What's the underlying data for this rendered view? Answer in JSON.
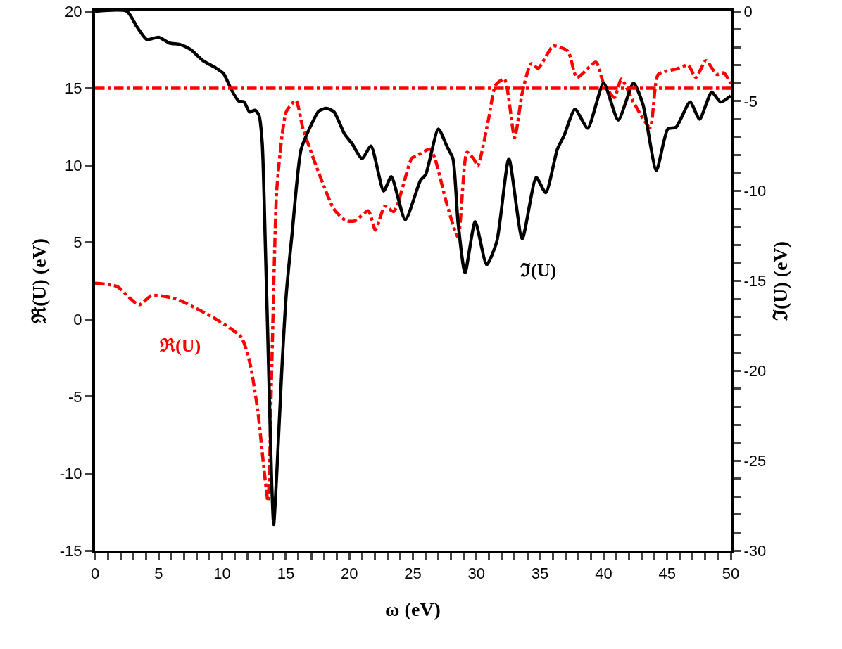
{
  "chart_data": {
    "type": "line",
    "xlabel": "ω (eV)",
    "ylabel": "ℜ(U) (eV)",
    "y2label": "ℑ(U) (eV)",
    "xlim": [
      0,
      50
    ],
    "xticks": [
      0,
      {
        "value": 1,
        "label": null
      },
      {
        "value": 2,
        "label": null
      },
      {
        "value": 3,
        "label": null
      },
      {
        "value": 4,
        "label": null
      },
      5,
      {
        "value": 6,
        "label": null
      },
      {
        "value": 7,
        "label": null
      },
      {
        "value": 8,
        "label": null
      },
      {
        "value": 9,
        "label": null
      },
      10,
      {
        "value": 11,
        "label": null
      },
      {
        "value": 12,
        "label": null
      },
      {
        "value": 13,
        "label": null
      },
      {
        "value": 14,
        "label": null
      },
      15,
      {
        "value": 16,
        "label": null
      },
      {
        "value": 17,
        "label": null
      },
      {
        "value": 18,
        "label": null
      },
      {
        "value": 19,
        "label": null
      },
      20,
      {
        "value": 21,
        "label": null
      },
      {
        "value": 22,
        "label": null
      },
      {
        "value": 23,
        "label": null
      },
      {
        "value": 24,
        "label": null
      },
      25,
      {
        "value": 26,
        "label": null
      },
      {
        "value": 27,
        "label": null
      },
      {
        "value": 28,
        "label": null
      },
      {
        "value": 29,
        "label": null
      },
      30,
      {
        "value": 31,
        "label": null
      },
      {
        "value": 32,
        "label": null
      },
      {
        "value": 33,
        "label": null
      },
      {
        "value": 34,
        "label": null
      },
      35,
      {
        "value": 36,
        "label": null
      },
      {
        "value": 37,
        "label": null
      },
      {
        "value": 38,
        "label": null
      },
      {
        "value": 39,
        "label": null
      },
      40,
      {
        "value": 41,
        "label": null
      },
      {
        "value": 42,
        "label": null
      },
      {
        "value": 43,
        "label": null
      },
      {
        "value": 44,
        "label": null
      },
      45,
      {
        "value": 46,
        "label": null
      },
      {
        "value": 47,
        "label": null
      },
      {
        "value": 48,
        "label": null
      },
      {
        "value": 49,
        "label": null
      },
      50
    ],
    "ylim": [
      -15,
      20
    ],
    "yticks": [
      -15,
      -10,
      -5,
      0,
      5,
      10,
      15,
      20
    ],
    "y2lim": [
      -30,
      0
    ],
    "y2ticks": [
      -30,
      {
        "value": -29,
        "label": null
      },
      {
        "value": -28,
        "label": null
      },
      {
        "value": -27,
        "label": null
      },
      {
        "value": -26,
        "label": null
      },
      -25,
      {
        "value": -24,
        "label": null
      },
      {
        "value": -23,
        "label": null
      },
      {
        "value": -22,
        "label": null
      },
      {
        "value": -21,
        "label": null
      },
      -20,
      {
        "value": -19,
        "label": null
      },
      {
        "value": -18,
        "label": null
      },
      {
        "value": -17,
        "label": null
      },
      {
        "value": -16,
        "label": null
      },
      -15,
      {
        "value": -14,
        "label": null
      },
      {
        "value": -13,
        "label": null
      },
      {
        "value": -12,
        "label": null
      },
      {
        "value": -11,
        "label": null
      },
      -10,
      {
        "value": -9,
        "label": null
      },
      {
        "value": -8,
        "label": null
      },
      {
        "value": -7,
        "label": null
      },
      {
        "value": -6,
        "label": null
      },
      -5,
      {
        "value": -4,
        "label": null
      },
      {
        "value": -3,
        "label": null
      },
      {
        "value": -2,
        "label": null
      },
      {
        "value": -1,
        "label": null
      },
      0
    ],
    "grid": false,
    "legend": false,
    "series": [
      {
        "name": "ℜ(U)",
        "color": "#ff0000",
        "line_style": "dashdot",
        "x": [
          0,
          1.7,
          3.45,
          4.45,
          6.3,
          8.35,
          9.65,
          11.5,
          12.2,
          12.8,
          13.3,
          13.6,
          13.9,
          14.1,
          14.3,
          15.05,
          15.8,
          16.35,
          17.6,
          18.8,
          19.75,
          20.45,
          21.5,
          22.05,
          22.8,
          23.5,
          24.9,
          25.25,
          26.35,
          26.75,
          27.7,
          28.55,
          29.25,
          29.8,
          30.1,
          30.95,
          31.5,
          32.2,
          33.0,
          33.6,
          34.3,
          34.85,
          36.05,
          37.2,
          37.9,
          39.4,
          40.0,
          40.85,
          41.4,
          42.35,
          43.65,
          44.3,
          45.7,
          46.65,
          47.25,
          48.05,
          48.9,
          49.45,
          50
        ],
        "values": [
          2.35,
          2.15,
          0.95,
          1.55,
          1.35,
          0.55,
          -0.05,
          -1.15,
          -2.9,
          -5.95,
          -9.8,
          -11.8,
          -3.05,
          3.65,
          8.5,
          13.5,
          14.2,
          12.4,
          9.5,
          7.15,
          6.4,
          6.4,
          7.05,
          5.8,
          7.35,
          7.0,
          10.45,
          10.6,
          11.05,
          10.4,
          7.4,
          5.35,
          10.85,
          10.4,
          9.95,
          13.0,
          15.2,
          15.6,
          11.8,
          14.7,
          16.6,
          16.3,
          17.75,
          17.4,
          15.7,
          16.7,
          15.3,
          14.4,
          15.6,
          14.1,
          12.45,
          15.9,
          16.25,
          16.5,
          15.7,
          16.8,
          15.9,
          16.0,
          15.3
        ]
      },
      {
        "name": "ℑ(U)",
        "color": "#000000",
        "line_style": "solid",
        "axis": "y2",
        "x": [
          0,
          2.5,
          3.3,
          4.07,
          5.0,
          5.85,
          6.7,
          7.5,
          8.5,
          9.5,
          10.1,
          10.75,
          11.3,
          11.7,
          12.15,
          12.6,
          12.9,
          13.15,
          13.4,
          13.65,
          13.9,
          14.05,
          14.3,
          14.7,
          15.05,
          15.5,
          16.2,
          16.95,
          17.6,
          18.2,
          18.8,
          19.6,
          20.2,
          21.0,
          21.7,
          22.7,
          23.3,
          24.4,
          25.6,
          26.0,
          27.0,
          27.7,
          28.15,
          28.55,
          29.1,
          29.9,
          30.8,
          31.6,
          32.55,
          33.6,
          34.7,
          35.45,
          36.35,
          36.9,
          37.75,
          38.75,
          40.0,
          41.15,
          42.35,
          43.1,
          44.15,
          45.05,
          45.7,
          46.8,
          47.55,
          48.5,
          49.2,
          50
        ],
        "values": [
          0,
          0,
          -0.87,
          -1.57,
          -1.45,
          -1.77,
          -1.85,
          -2.12,
          -2.75,
          -3.15,
          -3.46,
          -4.4,
          -5.0,
          -5.03,
          -5.6,
          -5.5,
          -5.8,
          -7.35,
          -13.2,
          -19.8,
          -26.4,
          -28.55,
          -25.6,
          -19.8,
          -15.65,
          -12.35,
          -7.7,
          -6.4,
          -5.55,
          -5.4,
          -5.6,
          -6.8,
          -7.35,
          -8.2,
          -7.5,
          -10.0,
          -9.2,
          -11.6,
          -9.4,
          -9.1,
          -6.55,
          -7.55,
          -8.2,
          -11.75,
          -14.55,
          -11.7,
          -14.1,
          -12.8,
          -8.2,
          -12.65,
          -9.25,
          -10.1,
          -7.7,
          -6.9,
          -5.45,
          -6.5,
          -4.0,
          -6.05,
          -4.0,
          -5.2,
          -8.85,
          -6.55,
          -6.45,
          -5.05,
          -6.0,
          -4.5,
          -5.05,
          -4.7
        ]
      }
    ],
    "ref_lines": [
      {
        "axis": "y",
        "value": 15,
        "color": "#ff0000",
        "line_style": "dashdot"
      }
    ]
  }
}
